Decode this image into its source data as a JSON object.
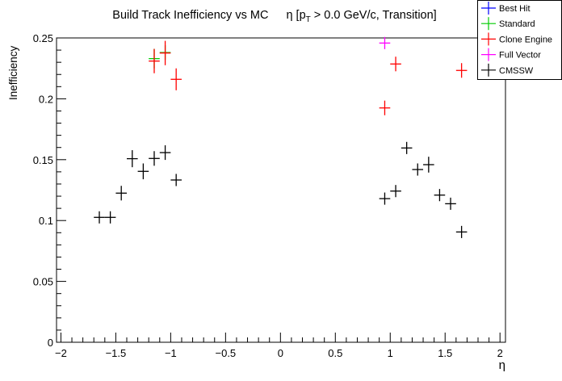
{
  "chart_data": {
    "type": "scatter",
    "title": "Build Track Inefficiency vs MC",
    "title_suffix_pre": "η [p",
    "title_suffix_sub": "T",
    "title_suffix_post": " > 0.0 GeV/c, Transition]",
    "xlabel": "η",
    "ylabel": "Inefficiency",
    "xlim": [
      -2.04,
      2.05
    ],
    "ylim": [
      0,
      0.25
    ],
    "xticks": [
      -2,
      -1.5,
      -1,
      -0.5,
      0,
      0.5,
      1,
      1.5,
      2
    ],
    "xtick_labels": [
      "−2",
      "−1.5",
      "−1",
      "−0.5",
      "0",
      "0.5",
      "1",
      "1.5",
      "2"
    ],
    "yticks": [
      0,
      0.05,
      0.1,
      0.15,
      0.2,
      0.25
    ],
    "ytick_labels": [
      "0",
      "0.05",
      "0.1",
      "0.15",
      "0.2",
      "0.25"
    ],
    "grid": false,
    "legend_placement": "top-right",
    "xerr": 0.05,
    "series": [
      {
        "name": "Best Hit",
        "color": "#0000ff",
        "points": []
      },
      {
        "name": "Standard",
        "color": "#00cc00",
        "points": [
          {
            "x": -1.15,
            "y": 0.233,
            "yerr": 0.008
          },
          {
            "x": -1.05,
            "y": 0.238,
            "yerr": 0.006
          }
        ]
      },
      {
        "name": "Clone Engine",
        "color": "#ff0000",
        "points": [
          {
            "x": -1.15,
            "y": 0.231,
            "yerr": 0.01
          },
          {
            "x": -1.05,
            "y": 0.2376,
            "yerr": 0.01
          },
          {
            "x": -0.95,
            "y": 0.216,
            "yerr": 0.009
          },
          {
            "x": 1.05,
            "y": 0.2286,
            "yerr": 0.006
          },
          {
            "x": 1.65,
            "y": 0.2233,
            "yerr": 0.006
          },
          {
            "x": 0.95,
            "y": 0.1925,
            "yerr": 0.006
          }
        ]
      },
      {
        "name": "Full Vector",
        "color": "#ff00ff",
        "points": [
          {
            "x": 0.95,
            "y": 0.2458,
            "yerr": 0.005
          }
        ]
      },
      {
        "name": "CMSSW",
        "color": "#000000",
        "points": [
          {
            "x": -1.65,
            "y": 0.1026,
            "yerr": 0.005
          },
          {
            "x": -1.55,
            "y": 0.1026,
            "yerr": 0.005
          },
          {
            "x": -1.45,
            "y": 0.1225,
            "yerr": 0.006
          },
          {
            "x": -1.35,
            "y": 0.1508,
            "yerr": 0.007
          },
          {
            "x": -1.25,
            "y": 0.1404,
            "yerr": 0.0065
          },
          {
            "x": -1.15,
            "y": 0.151,
            "yerr": 0.006
          },
          {
            "x": -1.05,
            "y": 0.1558,
            "yerr": 0.006
          },
          {
            "x": -0.95,
            "y": 0.1333,
            "yerr": 0.005
          },
          {
            "x": 0.95,
            "y": 0.118,
            "yerr": 0.005
          },
          {
            "x": 1.05,
            "y": 0.1242,
            "yerr": 0.005
          },
          {
            "x": 1.15,
            "y": 0.1596,
            "yerr": 0.005
          },
          {
            "x": 1.25,
            "y": 0.1419,
            "yerr": 0.005
          },
          {
            "x": 1.35,
            "y": 0.1459,
            "yerr": 0.0065
          },
          {
            "x": 1.45,
            "y": 0.1209,
            "yerr": 0.005
          },
          {
            "x": 1.55,
            "y": 0.1138,
            "yerr": 0.005
          },
          {
            "x": 1.65,
            "y": 0.0906,
            "yerr": 0.005
          }
        ]
      }
    ]
  }
}
